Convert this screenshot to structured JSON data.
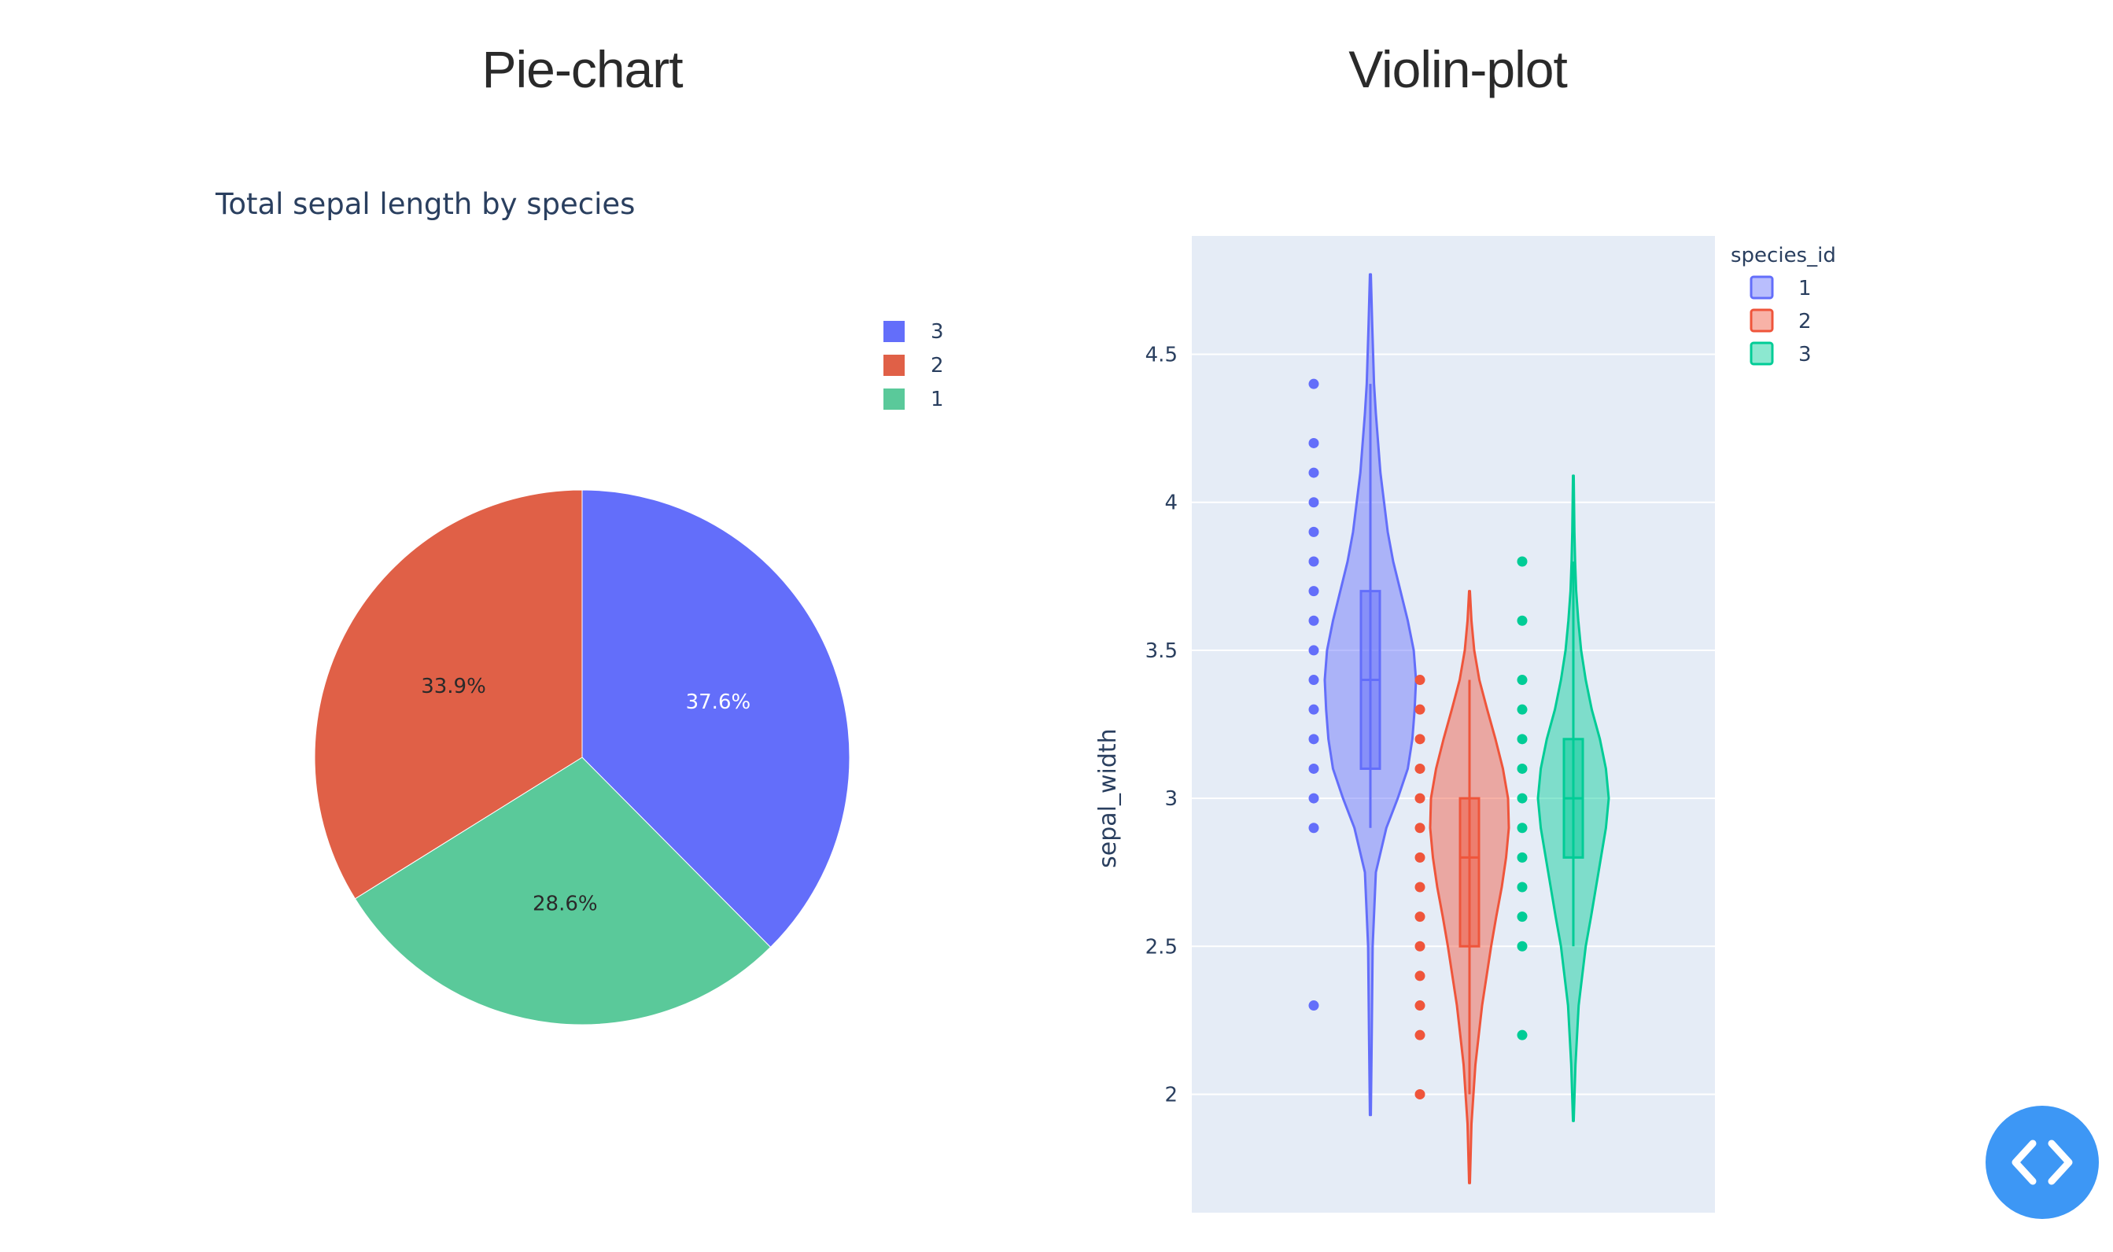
{
  "titles": {
    "pie": "Pie-chart",
    "violin": "Violin-plot"
  },
  "colors": {
    "species_1": "#636efa",
    "species_2": "#ef553b",
    "species_3": "#00cc96",
    "plot_bg": "#e5ecf6",
    "grid": "#ffffff"
  },
  "chart_data": [
    {
      "type": "pie",
      "title": "Total sepal length by species",
      "slices": [
        {
          "label": "3",
          "value": 37.6,
          "text": "37.6%",
          "color": "#636efa"
        },
        {
          "label": "1",
          "value": 28.6,
          "text": "28.6%",
          "color": "#5ac99a"
        },
        {
          "label": "2",
          "value": 33.9,
          "text": "33.9%",
          "color": "#e06047"
        }
      ],
      "legend": {
        "position": "top-right",
        "entries": [
          {
            "label": "3",
            "color": "#636efa"
          },
          {
            "label": "2",
            "color": "#e06047"
          },
          {
            "label": "1",
            "color": "#5ac99a"
          }
        ]
      }
    },
    {
      "type": "violin",
      "ylabel": "sepal_width",
      "ylim": [
        1.6,
        4.9
      ],
      "yticks": [
        2,
        2.5,
        3,
        3.5,
        4,
        4.5
      ],
      "ytick_labels": [
        "2",
        "2.5",
        "3",
        "3.5",
        "4",
        "4.5"
      ],
      "grid": true,
      "legend": {
        "title": "species_id",
        "position": "top-right",
        "entries": [
          {
            "label": "1",
            "color": "#636efa"
          },
          {
            "label": "2",
            "color": "#ef553b"
          },
          {
            "label": "3",
            "color": "#00cc96"
          }
        ]
      },
      "series": [
        {
          "name": "1",
          "color": "#636efa",
          "points": [
            4.4,
            4.2,
            4.1,
            4.0,
            3.9,
            3.8,
            3.7,
            3.6,
            3.5,
            3.4,
            3.3,
            3.2,
            3.1,
            3.0,
            2.9,
            2.3
          ],
          "box": {
            "q1": 3.1,
            "median": 3.4,
            "q3": 3.7,
            "whisker_low": 2.9,
            "whisker_high": 4.4
          },
          "range": [
            1.93,
            4.77
          ],
          "density": [
            [
              1.93,
              0.01
            ],
            [
              2.2,
              0.03
            ],
            [
              2.5,
              0.05
            ],
            [
              2.75,
              0.12
            ],
            [
              2.9,
              0.35
            ],
            [
              3.0,
              0.6
            ],
            [
              3.1,
              0.82
            ],
            [
              3.2,
              0.92
            ],
            [
              3.3,
              0.97
            ],
            [
              3.4,
              1.0
            ],
            [
              3.5,
              0.95
            ],
            [
              3.6,
              0.82
            ],
            [
              3.7,
              0.66
            ],
            [
              3.8,
              0.5
            ],
            [
              3.9,
              0.38
            ],
            [
              4.0,
              0.3
            ],
            [
              4.1,
              0.22
            ],
            [
              4.2,
              0.17
            ],
            [
              4.3,
              0.12
            ],
            [
              4.4,
              0.08
            ],
            [
              4.6,
              0.04
            ],
            [
              4.77,
              0.01
            ]
          ]
        },
        {
          "name": "2",
          "color": "#ef553b",
          "points": [
            3.4,
            3.3,
            3.2,
            3.1,
            3.0,
            2.9,
            2.8,
            2.7,
            2.6,
            2.5,
            2.4,
            2.3,
            2.2,
            2.0
          ],
          "box": {
            "q1": 2.5,
            "median": 2.8,
            "q3": 3.0,
            "whisker_low": 2.0,
            "whisker_high": 3.4
          },
          "range": [
            1.7,
            3.7
          ],
          "density": [
            [
              1.7,
              0.01
            ],
            [
              1.9,
              0.05
            ],
            [
              2.1,
              0.15
            ],
            [
              2.3,
              0.32
            ],
            [
              2.5,
              0.55
            ],
            [
              2.6,
              0.68
            ],
            [
              2.7,
              0.82
            ],
            [
              2.8,
              0.93
            ],
            [
              2.9,
              1.0
            ],
            [
              3.0,
              0.98
            ],
            [
              3.1,
              0.85
            ],
            [
              3.2,
              0.66
            ],
            [
              3.3,
              0.45
            ],
            [
              3.4,
              0.25
            ],
            [
              3.5,
              0.12
            ],
            [
              3.6,
              0.05
            ],
            [
              3.7,
              0.01
            ]
          ]
        },
        {
          "name": "3",
          "color": "#00cc96",
          "points": [
            3.8,
            3.6,
            3.4,
            3.3,
            3.2,
            3.1,
            3.0,
            2.9,
            2.8,
            2.7,
            2.6,
            2.5,
            2.2
          ],
          "box": {
            "q1": 2.8,
            "median": 3.0,
            "q3": 3.2,
            "whisker_low": 2.5,
            "whisker_high": 3.8
          },
          "range": [
            1.91,
            4.09
          ],
          "density": [
            [
              1.91,
              0.01
            ],
            [
              2.1,
              0.06
            ],
            [
              2.3,
              0.15
            ],
            [
              2.5,
              0.35
            ],
            [
              2.6,
              0.5
            ],
            [
              2.7,
              0.64
            ],
            [
              2.8,
              0.78
            ],
            [
              2.9,
              0.92
            ],
            [
              3.0,
              1.0
            ],
            [
              3.1,
              0.92
            ],
            [
              3.2,
              0.75
            ],
            [
              3.3,
              0.52
            ],
            [
              3.4,
              0.35
            ],
            [
              3.5,
              0.22
            ],
            [
              3.6,
              0.14
            ],
            [
              3.7,
              0.08
            ],
            [
              3.8,
              0.05
            ],
            [
              3.9,
              0.03
            ],
            [
              4.09,
              0.01
            ]
          ]
        }
      ]
    }
  ],
  "code_button": {
    "icon": "code-brackets-icon"
  }
}
